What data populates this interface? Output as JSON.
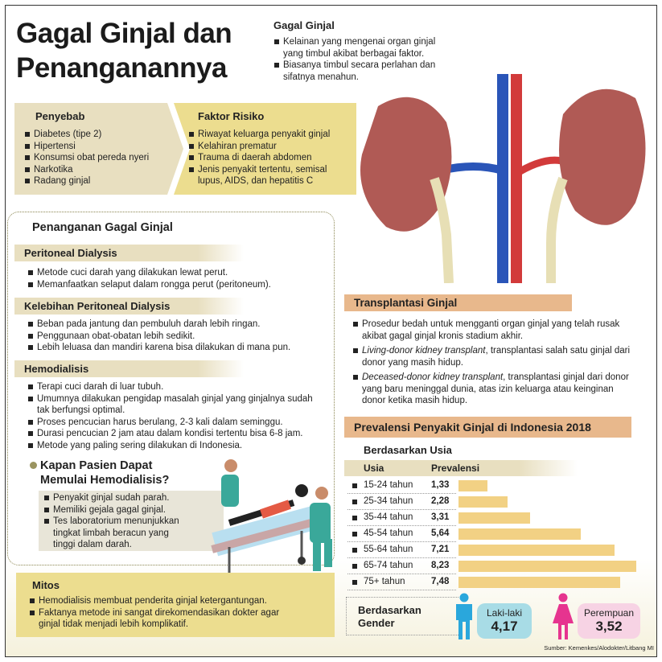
{
  "title": {
    "line1": "Gagal Ginjal dan",
    "line2": "Penanganannya"
  },
  "intro": {
    "heading": "Gagal Ginjal",
    "items": [
      "Kelainan yang mengenai organ ginjal yang timbul akibat berbagai faktor.",
      "Biasanya timbul secara perlahan dan sifatnya menahun."
    ]
  },
  "penyebab": {
    "heading": "Penyebab",
    "items": [
      "Diabetes (tipe 2)",
      "Hipertensi",
      "Konsumsi obat pereda nyeri",
      "Narkotika",
      "Radang ginjal"
    ]
  },
  "faktor": {
    "heading": "Faktor Risiko",
    "items": [
      "Riwayat keluarga penyakit ginjal",
      "Kelahiran prematur",
      "Trauma di daerah abdomen",
      "Jenis penyakit tertentu, semisal lupus, AIDS, dan hepatitis C"
    ]
  },
  "penanganan": {
    "heading": "Penanganan Gagal Ginjal",
    "peritoneal": {
      "heading": "Peritoneal Dialysis",
      "items": [
        "Metode cuci darah yang dilakukan lewat perut.",
        "Memanfaatkan selaput dalam rongga perut (peritoneum)."
      ]
    },
    "kelebihan": {
      "heading": "Kelebihan Peritoneal Dialysis",
      "items": [
        "Beban pada jantung dan pembuluh darah lebih ringan.",
        "Penggunaan obat-obatan lebih sedikit.",
        "Lebih leluasa dan mandiri karena bisa dilakukan di mana pun."
      ]
    },
    "hemo": {
      "heading": "Hemodialisis",
      "items": [
        "Terapi cuci darah di luar tubuh.",
        "Umumnya dilakukan pengidap masalah ginjal yang ginjalnya sudah tak berfungsi optimal.",
        "Proses pencucian harus berulang, 2-3 kali dalam seminggu.",
        "Durasi pencucian 2 jam atau dalam kondisi tertentu bisa 6-8 jam.",
        "Metode yang paling sering dilakukan di Indonesia."
      ]
    },
    "kapan": {
      "heading1": "Kapan Pasien Dapat",
      "heading2": "Memulai Hemodialisis?",
      "items": [
        "Penyakit ginjal sudah parah.",
        "Memiliki gejala gagal ginjal.",
        "Tes laboratorium menunjukkan tingkat limbah beracun yang tinggi dalam darah."
      ]
    }
  },
  "mitos": {
    "heading": "Mitos",
    "items": [
      "Hemodialisis membuat penderita ginjal ketergantungan.",
      "Faktanya metode ini sangat direkomendasikan dokter agar ginjal tidak menjadi lebih komplikatif."
    ]
  },
  "transplantasi": {
    "heading": "Transplantasi Ginjal",
    "items": [
      {
        "em": "",
        "text": "Prosedur bedah untuk mengganti organ ginjal yang telah rusak akibat gagal ginjal kronis stadium akhir."
      },
      {
        "em": "Living-donor kidney transplant",
        "text": ", transplantasi salah satu ginjal dari donor yang masih hidup."
      },
      {
        "em": "Deceased-donor kidney transplant",
        "text": ", transplantasi ginjal dari donor yang baru meninggal dunia, atas izin keluarga atau keinginan donor ketika masih hidup."
      }
    ]
  },
  "prevalensi": {
    "heading": "Prevalensi Penyakit Ginjal di Indonesia 2018",
    "by_age": "Berdasarkan Usia",
    "col_age": "Usia",
    "col_prev": "Prevalensi",
    "by_gender": "Berdasarkan Gender",
    "male_label": "Laki-laki",
    "male_value": "4,17",
    "female_label": "Perempuan",
    "female_value": "3,52"
  },
  "chart_data": {
    "type": "bar",
    "orientation": "horizontal",
    "categories": [
      "15-24 tahun",
      "25-34 tahun",
      "35-44 tahun",
      "45-54 tahun",
      "55-64 tahun",
      "65-74 tahun",
      "75+ tahun"
    ],
    "values": [
      1.33,
      2.28,
      3.31,
      5.64,
      7.21,
      8.23,
      7.48
    ],
    "labels": [
      "1,33",
      "2,28",
      "3,31",
      "5,64",
      "7,21",
      "8,23",
      "7,48"
    ],
    "bar_color": "#f2d184"
  },
  "source": "Sumber: Kemenkes/Alodokter/Litbang MI",
  "colors": {
    "male": "#2aa7dc",
    "female": "#e6348f",
    "male_bg": "#a8dce6",
    "female_bg": "#f7d3e4",
    "yellow": "#ecdd8f",
    "tan": "#e8dfc0",
    "orange": "#e8b88c"
  }
}
